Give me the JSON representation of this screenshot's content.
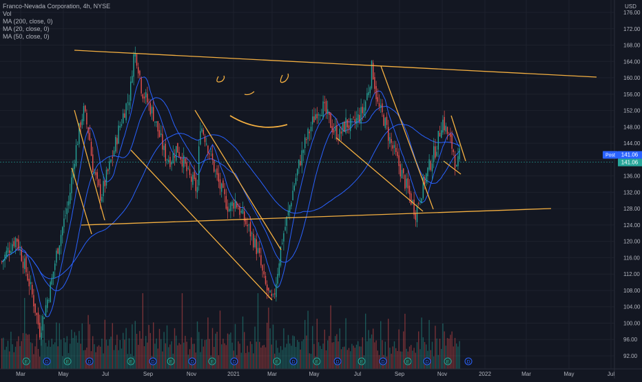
{
  "legend": {
    "title": "Franco-Nevada Corporation, 4h, NYSE",
    "vol": "Vol",
    "ma200": "MA (200, close, 0)",
    "ma20": "MA (20, close, 0)",
    "ma50": "MA (50, close, 0)"
  },
  "currency": "USD",
  "price_tags": {
    "post_label": "Post",
    "post_value": "141.06",
    "last_value": "141.06"
  },
  "colors": {
    "background": "#131722",
    "up": "#26a69a",
    "down": "#ef5350",
    "ma": "#2962ff",
    "trendline": "#f5b041",
    "grid": "#1e222d"
  },
  "event_markers": [
    "E",
    "D",
    "E",
    "D",
    "E",
    "D",
    "E",
    "D",
    "E",
    "D",
    "E",
    "D",
    "E",
    "D",
    "E",
    "D"
  ],
  "chart_data": {
    "type": "candlestick",
    "symbol": "Franco-Nevada Corporation",
    "interval": "4h",
    "exchange": "NYSE",
    "y_axis": {
      "ticks": [
        "176.00",
        "172.00",
        "168.00",
        "164.00",
        "160.00",
        "156.00",
        "152.00",
        "148.00",
        "144.00",
        "140.00",
        "136.00",
        "132.00",
        "128.00",
        "124.00",
        "120.00",
        "116.00",
        "112.00",
        "108.00",
        "104.00",
        "100.00",
        "96.00",
        "92.00"
      ],
      "range": [
        90,
        178
      ]
    },
    "x_axis": {
      "ticks": [
        "Mar",
        "May",
        "Jul",
        "Sep",
        "Nov",
        "2021",
        "Mar",
        "May",
        "Jul",
        "Sep",
        "Nov",
        "2022",
        "Mar",
        "May",
        "Jul"
      ]
    },
    "price_path": [
      [
        0,
        115
      ],
      [
        3,
        119
      ],
      [
        5,
        121
      ],
      [
        7,
        116
      ],
      [
        9,
        111
      ],
      [
        11,
        105
      ],
      [
        13,
        98
      ],
      [
        15,
        104
      ],
      [
        17,
        110
      ],
      [
        19,
        118
      ],
      [
        21,
        124
      ],
      [
        23,
        130
      ],
      [
        25,
        141
      ],
      [
        27,
        149
      ],
      [
        28,
        152
      ],
      [
        30,
        146
      ],
      [
        31,
        139
      ],
      [
        33,
        133
      ],
      [
        34,
        131
      ],
      [
        36,
        136
      ],
      [
        38,
        141
      ],
      [
        40,
        147
      ],
      [
        42,
        152
      ],
      [
        44,
        156
      ],
      [
        45,
        165
      ],
      [
        46,
        166
      ],
      [
        47,
        162
      ],
      [
        48,
        157
      ],
      [
        50,
        154
      ],
      [
        52,
        151
      ],
      [
        54,
        146
      ],
      [
        56,
        141
      ],
      [
        58,
        140
      ],
      [
        60,
        143
      ],
      [
        62,
        140
      ],
      [
        64,
        136
      ],
      [
        66,
        134
      ],
      [
        67,
        132
      ],
      [
        68,
        149
      ],
      [
        70,
        145
      ],
      [
        72,
        140
      ],
      [
        74,
        135
      ],
      [
        76,
        131
      ],
      [
        78,
        128
      ],
      [
        80,
        130
      ],
      [
        82,
        127
      ],
      [
        84,
        124
      ],
      [
        86,
        121
      ],
      [
        88,
        117
      ],
      [
        90,
        110
      ],
      [
        92,
        106
      ],
      [
        93,
        105
      ],
      [
        94,
        110
      ],
      [
        96,
        120
      ],
      [
        98,
        126
      ],
      [
        100,
        133
      ],
      [
        102,
        139
      ],
      [
        104,
        144
      ],
      [
        106,
        148
      ],
      [
        108,
        152
      ],
      [
        110,
        153
      ],
      [
        112,
        150
      ],
      [
        114,
        147
      ],
      [
        116,
        146
      ],
      [
        118,
        149
      ],
      [
        120,
        148
      ],
      [
        122,
        150
      ],
      [
        124,
        152
      ],
      [
        126,
        158
      ],
      [
        127,
        163
      ],
      [
        128,
        158
      ],
      [
        129,
        153
      ],
      [
        131,
        150
      ],
      [
        133,
        145
      ],
      [
        135,
        141
      ],
      [
        137,
        137
      ],
      [
        139,
        133
      ],
      [
        141,
        129
      ],
      [
        142,
        127
      ],
      [
        143,
        130
      ],
      [
        145,
        135
      ],
      [
        147,
        139
      ],
      [
        149,
        143
      ],
      [
        150,
        146
      ],
      [
        151,
        150
      ],
      [
        153,
        146
      ],
      [
        155,
        142
      ],
      [
        156,
        137
      ],
      [
        157,
        141
      ]
    ],
    "volume": [
      30,
      26,
      35,
      28,
      40,
      25,
      45,
      30,
      22,
      38,
      27,
      33,
      20,
      36,
      42,
      28,
      31,
      25,
      39,
      34,
      46,
      24,
      29,
      37,
      33,
      21,
      44,
      26,
      35,
      30,
      27,
      40,
      23,
      38,
      32,
      28,
      36,
      25,
      41,
      30,
      22,
      34,
      29,
      37,
      26,
      43,
      31,
      24,
      35,
      28,
      33,
      39,
      27,
      45,
      30,
      25,
      36,
      23,
      48,
      29,
      34,
      27,
      31,
      38,
      24,
      35,
      30,
      26,
      42,
      33,
      28,
      37,
      25,
      40,
      31,
      27,
      34,
      22,
      39,
      30,
      36,
      26,
      33,
      29,
      44,
      28,
      35,
      24,
      38,
      31,
      27
    ]
  }
}
